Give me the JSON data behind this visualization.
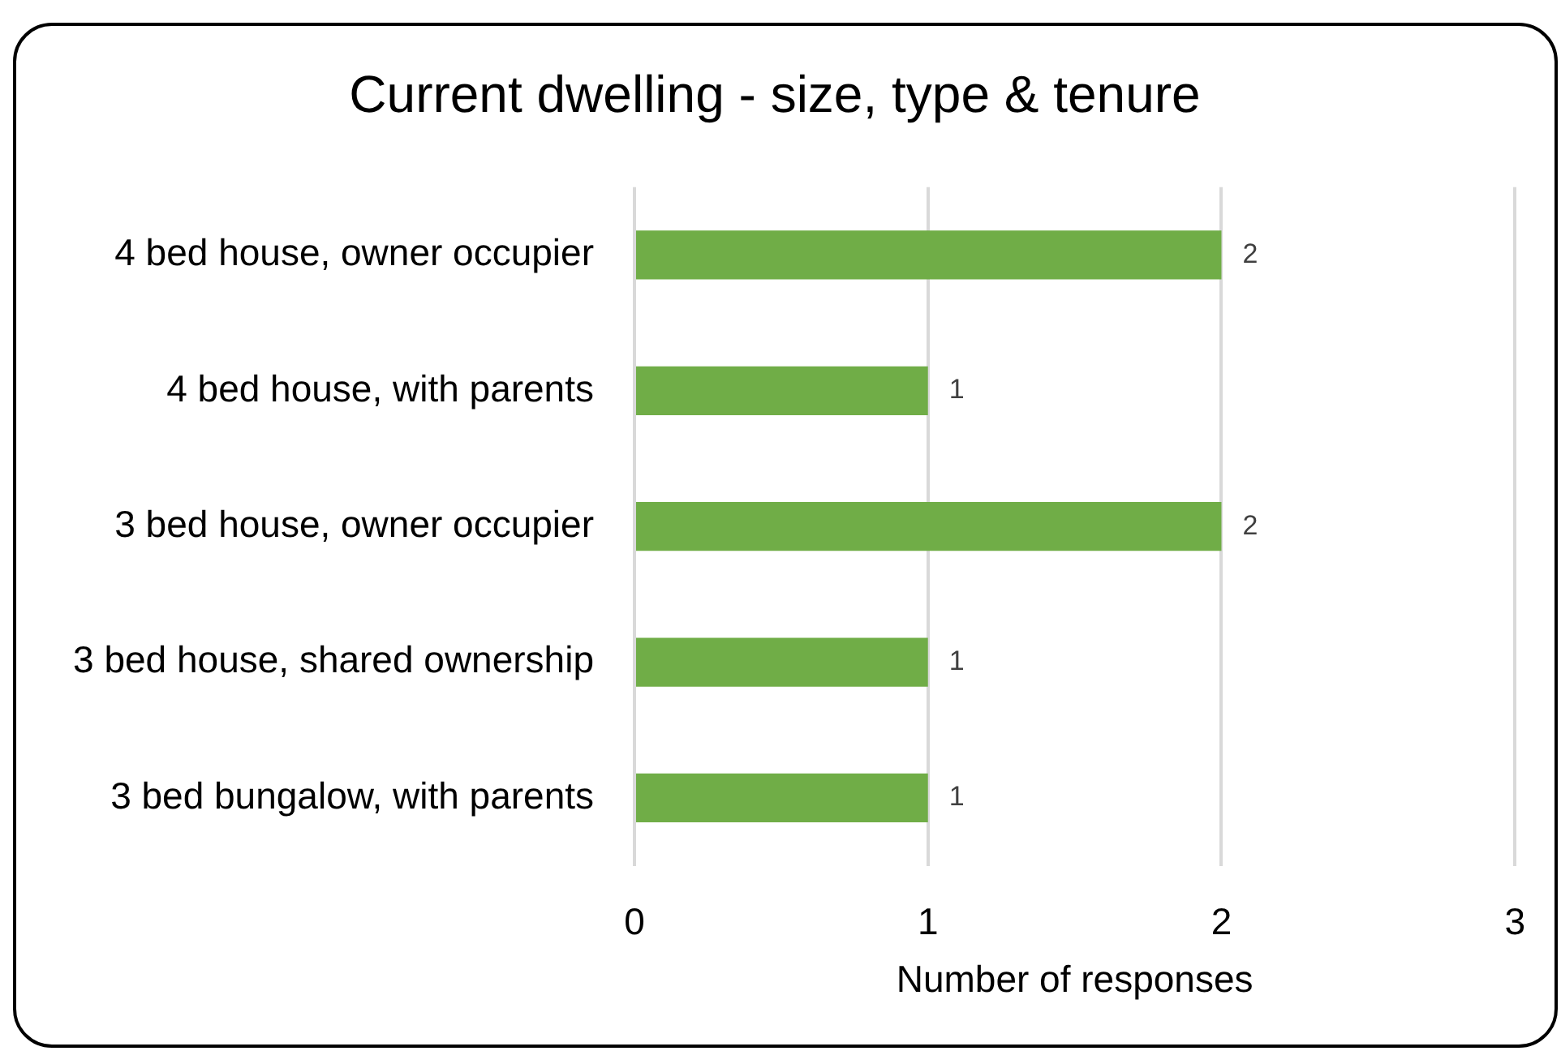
{
  "chart_data": {
    "type": "bar",
    "orientation": "horizontal",
    "title": "Current dwelling - size, type & tenure",
    "xlabel": "Number of responses",
    "categories": [
      "4 bed house, owner occupier",
      "4 bed house, with parents",
      "3 bed house, owner occupier",
      "3 bed house, shared ownership",
      "3 bed bungalow, with parents"
    ],
    "values": [
      2,
      1,
      2,
      1,
      1
    ],
    "color": "#70ad47",
    "xlim": [
      0,
      3
    ],
    "xticks": [
      0,
      1,
      2,
      3
    ],
    "grid": "x",
    "data_labels": true
  }
}
